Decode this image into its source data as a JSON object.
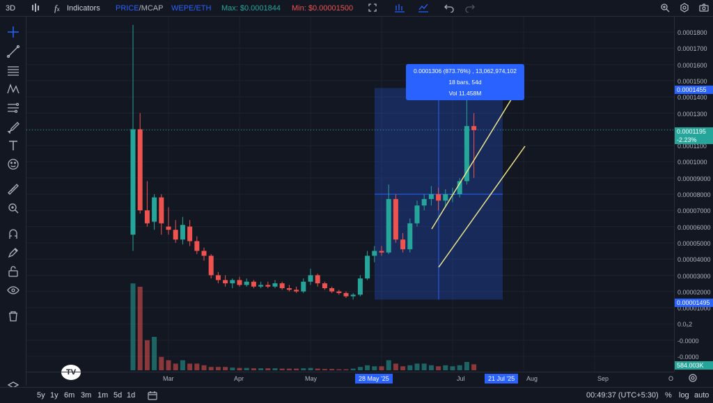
{
  "topbar": {
    "interval": "3D",
    "indicators_label": "Indicators",
    "mode_price": "PRICE",
    "mode_sep": "/",
    "mode_mcap": "MCAP",
    "symbol": "WEPE/ETH",
    "max_label": "Max: $0.0001844",
    "min_label": "Min: $0.00001500"
  },
  "measure": {
    "line1": "0.0001306 (873.76%) , 13,062,974,102",
    "line2": "18 bars, 54d",
    "line3": "Vol 11.458M"
  },
  "price_axis": {
    "ticks": [
      "0.0001800",
      "0.0001700",
      "0.0001600",
      "0.0001500",
      "0.0001400",
      "0.0001300",
      "0.0001200",
      "0.0001100",
      "0.0001000",
      "0.00009000",
      "0.00008000",
      "0.00007000",
      "0.00006000",
      "0.00005000",
      "0.00004000",
      "0.00003000",
      "0.00002000",
      "0.00001000",
      "0.0₅2",
      "-0.0000",
      "-0.0000"
    ],
    "upper_range": "0.0001455",
    "last_price": "0.0001195",
    "change": "-2.23%",
    "lower_range": "0.00001495",
    "volume": "584.003K"
  },
  "time_axis": {
    "labels": [
      "Mar",
      "Apr",
      "May",
      "Jul",
      "Aug",
      "Sep",
      "O"
    ],
    "range_start": "28 May '25",
    "range_end": "21 Jul '25"
  },
  "bottombar": {
    "ranges": [
      "5y",
      "1y",
      "6m",
      "3m",
      "1m",
      "5d",
      "1d"
    ],
    "clock": "00:49:37 (UTC+5:30)",
    "percent": "%",
    "log": "log",
    "auto": "auto"
  },
  "colors": {
    "up": "#26a69a",
    "down": "#ef5350",
    "accent": "#2962ff",
    "channel": "#f0e68c"
  },
  "chart_data": {
    "type": "candlestick",
    "series": [
      {
        "name": "",
        "candles": [
          [
            5.5e-05,
            0.0001844,
            4.5e-05,
            0.00012
          ],
          [
            0.00012,
            0.00013,
            6.8e-05,
            7e-05
          ],
          [
            7e-05,
            8.8e-05,
            6e-05,
            6.2e-05
          ],
          [
            6.3e-05,
            8e-05,
            5.8e-05,
            7.8e-05
          ],
          [
            7.8e-05,
            8e-05,
            5.5e-05,
            6.2e-05
          ],
          [
            6e-05,
            7.2e-05,
            5.5e-05,
            5.8e-05
          ],
          [
            5.8e-05,
            6.4e-05,
            5e-05,
            5.2e-05
          ],
          [
            5.2e-05,
            6.6e-05,
            4.9e-05,
            6.1e-05
          ],
          [
            6e-05,
            6.4e-05,
            4.8e-05,
            5.1e-05
          ],
          [
            5.1e-05,
            5.4e-05,
            4.3e-05,
            4.5e-05
          ],
          [
            4.5e-05,
            4.7e-05,
            3.9e-05,
            4.2e-05
          ],
          [
            4.2e-05,
            4.3e-05,
            2.8e-05,
            3e-05
          ],
          [
            3e-05,
            3.2e-05,
            2.5e-05,
            2.7e-05
          ],
          [
            2.7e-05,
            3e-05,
            2.3e-05,
            2.5e-05
          ],
          [
            2.5e-05,
            2.8e-05,
            2.2e-05,
            2.7e-05
          ],
          [
            2.7e-05,
            2.9e-05,
            2.3e-05,
            2.4e-05
          ],
          [
            2.4e-05,
            2.8e-05,
            2.3e-05,
            2.6e-05
          ],
          [
            2.6e-05,
            2.7e-05,
            2.2e-05,
            2.3e-05
          ],
          [
            2.3e-05,
            2.6e-05,
            2.2e-05,
            2.4e-05
          ],
          [
            2.4e-05,
            2.6e-05,
            2.2e-05,
            2.3e-05
          ],
          [
            2.3e-05,
            2.7e-05,
            2.2e-05,
            2.5e-05
          ],
          [
            2.5e-05,
            2.6e-05,
            2.1e-05,
            2.2e-05
          ],
          [
            2.2e-05,
            2.4e-05,
            2e-05,
            2.1e-05
          ],
          [
            2.1e-05,
            2.3e-05,
            1.9e-05,
            2e-05
          ],
          [
            2e-05,
            2.8e-05,
            1.9e-05,
            2.6e-05
          ],
          [
            2.6e-05,
            3.4e-05,
            2.4e-05,
            3e-05
          ],
          [
            3e-05,
            3.1e-05,
            2.3e-05,
            2.5e-05
          ],
          [
            2.5e-05,
            2.6e-05,
            2.1e-05,
            2.2e-05
          ],
          [
            2.2e-05,
            2.3e-05,
            1.9e-05,
            2e-05
          ],
          [
            2e-05,
            2.1e-05,
            1.8e-05,
            1.9e-05
          ],
          [
            1.9e-05,
            2e-05,
            1.6e-05,
            1.7e-05
          ],
          [
            1.7e-05,
            1.9e-05,
            1.5e-05,
            1.8e-05
          ],
          [
            1.8e-05,
            3e-05,
            1.7e-05,
            2.8e-05
          ],
          [
            2.8e-05,
            4.5e-05,
            2.7e-05,
            4.2e-05
          ],
          [
            4.2e-05,
            4.8e-05,
            3.8e-05,
            4.5e-05
          ],
          [
            4.5e-05,
            4.8e-05,
            4.2e-05,
            4.4e-05
          ],
          [
            4.4e-05,
            8.6e-05,
            4.3e-05,
            7.7e-05
          ],
          [
            7.7e-05,
            8e-05,
            5e-05,
            5.2e-05
          ],
          [
            5.2e-05,
            5.6e-05,
            4.4e-05,
            4.6e-05
          ],
          [
            4.6e-05,
            6.5e-05,
            4.4e-05,
            6.2e-05
          ],
          [
            6.2e-05,
            7.6e-05,
            6e-05,
            7.3e-05
          ],
          [
            7.3e-05,
            8e-05,
            7e-05,
            7.7e-05
          ],
          [
            7.7e-05,
            8.5e-05,
            7.3e-05,
            8e-05
          ],
          [
            8e-05,
            8.4e-05,
            7e-05,
            7.6e-05
          ],
          [
            7.6e-05,
            8.3e-05,
            7.2e-05,
            8e-05
          ],
          [
            8e-05,
            8.4e-05,
            7.5e-05,
            8e-05
          ],
          [
            8e-05,
            9e-05,
            7.8e-05,
            8.8e-05
          ],
          [
            8.8e-05,
            0.000145,
            8.6e-05,
            0.000122
          ],
          [
            0.000122,
            0.00013,
            9e-05,
            0.0001195
          ]
        ],
        "volumes": [
          2.6,
          2.5,
          0.9,
          1.0,
          0.4,
          0.3,
          0.2,
          0.3,
          0.2,
          0.2,
          0.15,
          0.1,
          0.1,
          0.1,
          0.08,
          0.07,
          0.07,
          0.06,
          0.06,
          0.06,
          0.06,
          0.05,
          0.05,
          0.05,
          0.06,
          0.07,
          0.05,
          0.04,
          0.04,
          0.03,
          0.03,
          0.05,
          0.1,
          0.15,
          0.12,
          0.12,
          0.3,
          0.2,
          0.12,
          0.15,
          0.2,
          0.2,
          0.15,
          0.12,
          0.15,
          0.12,
          0.15,
          0.25,
          0.18
        ]
      }
    ]
  }
}
